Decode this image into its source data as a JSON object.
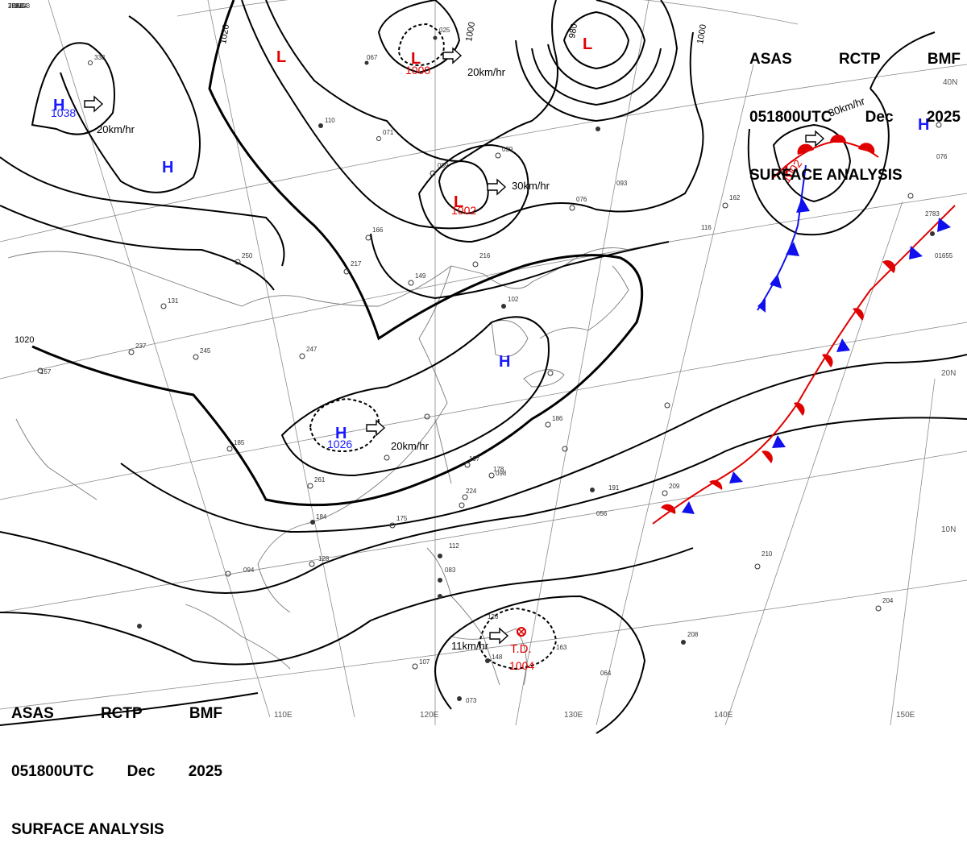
{
  "header": {
    "agency_codes": [
      "ASAS",
      "RCTP",
      "BMF"
    ],
    "valid_time": [
      "051800UTC",
      "Dec",
      "2025"
    ],
    "product": "SURFACE ANALYSIS"
  },
  "colors": {
    "isobar": "#000000",
    "high": "#1a1aff",
    "low": "#e00000",
    "warm_front": "#e00000",
    "cold_front": "#1010ee",
    "coast": "#777777",
    "grid": "#888888"
  },
  "isobar_labels": [
    "1020",
    "1020",
    "1000",
    "1000",
    "980"
  ],
  "pressure_systems": [
    {
      "type": "H",
      "value": "1038",
      "motion": "20km/hr"
    },
    {
      "type": "H",
      "value": ""
    },
    {
      "type": "L",
      "value": ""
    },
    {
      "type": "L",
      "value": "1000",
      "motion": "20km/hr"
    },
    {
      "type": "L",
      "value": ""
    },
    {
      "type": "L",
      "value": "1002",
      "motion": "30km/hr"
    },
    {
      "type": "L",
      "value": "1002",
      "motion": "30km/hr"
    },
    {
      "type": "H",
      "value": ""
    },
    {
      "type": "H",
      "value": ""
    },
    {
      "type": "H",
      "value": "1026",
      "motion": "20km/hr"
    },
    {
      "type": "T.D.",
      "value": "1004",
      "motion": "11km/hr"
    }
  ],
  "longitude_labels": [
    "110E",
    "120E",
    "130E",
    "140E",
    "150E"
  ],
  "latitude_labels": [
    "40N",
    "20N",
    "10N"
  ],
  "station_samples": [
    "338",
    "067",
    "025",
    "110",
    "071",
    "089",
    "039",
    "166",
    "217",
    "149",
    "216",
    "102",
    "131",
    "237",
    "245",
    "247",
    "250",
    "157",
    "185",
    "261",
    "184",
    "175",
    "224",
    "197",
    "178",
    "186",
    "191",
    "209",
    "210",
    "204",
    "208",
    "162",
    "093",
    "076",
    "083",
    "112",
    "094",
    "128",
    "107",
    "126",
    "148",
    "163",
    "098",
    "073",
    "064",
    "056",
    "116",
    "076",
    "2783",
    "01655",
    "7KEG",
    "2GNG3",
    "3PAE4",
    "7LSU"
  ]
}
